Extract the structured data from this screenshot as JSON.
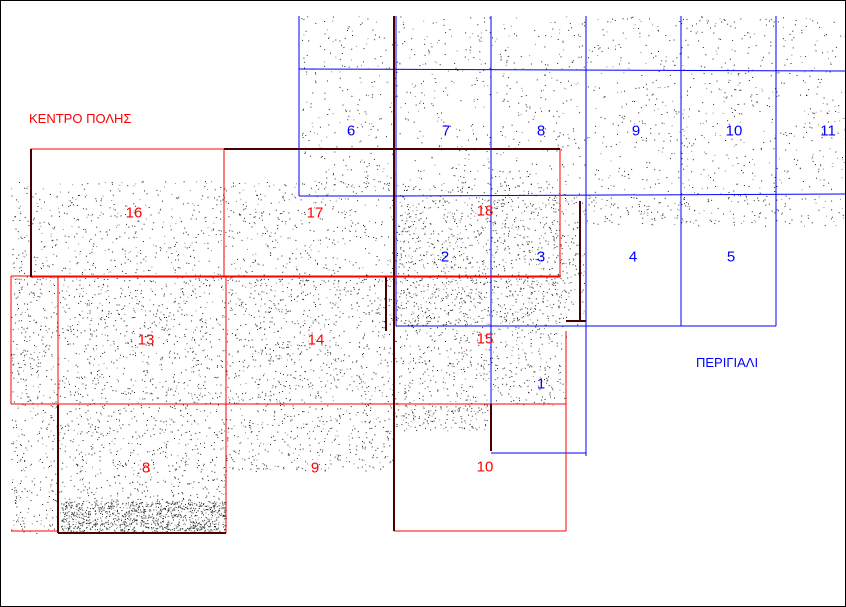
{
  "map": {
    "colors": {
      "red_grid": "#ff0000",
      "blue_grid": "#0000ff",
      "dark": "#4a0000"
    },
    "zones": {
      "city_center": "ΚΕΝΤΡΟ ΠΟΛΗΣ",
      "seafront": "ΠΕΡΙΓΙΑΛΙ"
    },
    "blue_sheets": [
      "6",
      "7",
      "8",
      "9",
      "10",
      "11",
      "2",
      "3",
      "4",
      "5",
      "1"
    ],
    "red_sheets": [
      "16",
      "17",
      "18",
      "13",
      "14",
      "15",
      "8",
      "9",
      "10"
    ]
  }
}
